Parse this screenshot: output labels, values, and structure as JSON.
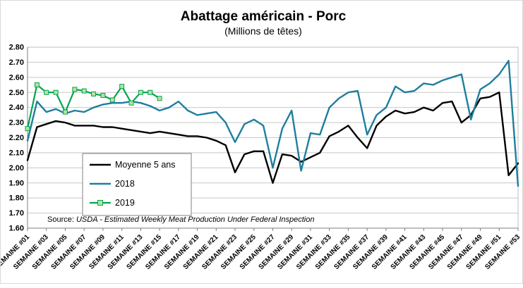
{
  "chart_data": {
    "type": "line",
    "title": "Abattage américain - Porc",
    "subtitle": "(Millions de têtes)",
    "source_prefix": "Source:",
    "source_text": "USDA - Estimated Weekly Meat Production Under Federal Inspection",
    "ylim": [
      1.6,
      2.8
    ],
    "ytick_step": 0.1,
    "grid": true,
    "legend_position": "inside-left",
    "n_points": 53,
    "tick_every": 2,
    "x_tick_labels": [
      "SEMAINE #01",
      "SEMAINE #03",
      "SEMAINE #05",
      "SEMAINE #07",
      "SEMAINE #09",
      "SEMAINE #11",
      "SEMAINE #13",
      "SEMAINE #15",
      "SEMAINE #17",
      "SEMAINE #19",
      "SEMAINE #21",
      "SEMAINE #23",
      "SEMAINE #25",
      "SEMAINE #27",
      "SEMAINE #29",
      "SEMAINE #31",
      "SEMAINE #33",
      "SEMAINE #35",
      "SEMAINE #37",
      "SEMAINE #39",
      "SEMAINE #41",
      "SEMAINE #43",
      "SEMAINE #45",
      "SEMAINE #47",
      "SEMAINE #49",
      "SEMAINE #51",
      "SEMAINE #53"
    ],
    "series": [
      {
        "name": "Moyenne 5 ans",
        "color": "#000000",
        "width": 2.4,
        "marker": false,
        "values": [
          2.05,
          2.27,
          2.29,
          2.31,
          2.3,
          2.28,
          2.28,
          2.28,
          2.27,
          2.27,
          2.26,
          2.25,
          2.24,
          2.23,
          2.24,
          2.23,
          2.22,
          2.21,
          2.21,
          2.2,
          2.18,
          2.15,
          1.97,
          2.09,
          2.11,
          2.11,
          1.9,
          2.09,
          2.08,
          2.04,
          2.07,
          2.1,
          2.21,
          2.24,
          2.28,
          2.2,
          2.13,
          2.28,
          2.34,
          2.38,
          2.36,
          2.37,
          2.4,
          2.38,
          2.43,
          2.44,
          2.3,
          2.35,
          2.46,
          2.47,
          2.5,
          1.95,
          2.03
        ]
      },
      {
        "name": "2018",
        "color": "#1F7E9E",
        "width": 2.4,
        "marker": false,
        "values": [
          2.18,
          2.44,
          2.37,
          2.39,
          2.36,
          2.38,
          2.37,
          2.4,
          2.42,
          2.43,
          2.43,
          2.44,
          2.43,
          2.41,
          2.38,
          2.4,
          2.44,
          2.38,
          2.35,
          2.36,
          2.37,
          2.3,
          2.17,
          2.29,
          2.32,
          2.28,
          2.0,
          2.26,
          2.38,
          1.98,
          2.23,
          2.22,
          2.4,
          2.46,
          2.5,
          2.51,
          2.22,
          2.35,
          2.4,
          2.54,
          2.5,
          2.51,
          2.56,
          2.55,
          2.58,
          2.6,
          2.62,
          2.32,
          2.52,
          2.56,
          2.62,
          2.71,
          1.88
        ]
      },
      {
        "name": "2019",
        "color": "#00A550",
        "width": 2.2,
        "marker": "square",
        "marker_fill": "#B7E1A1",
        "values": [
          2.26,
          2.55,
          2.5,
          2.5,
          2.37,
          2.52,
          2.51,
          2.49,
          2.48,
          2.45,
          2.54,
          2.43,
          2.5,
          2.5,
          2.46,
          null,
          null,
          null,
          null,
          null,
          null,
          null,
          null,
          null,
          null,
          null,
          null,
          null,
          null,
          null,
          null,
          null,
          null,
          null,
          null,
          null,
          null,
          null,
          null,
          null,
          null,
          null,
          null,
          null,
          null,
          null,
          null,
          null,
          null,
          null,
          null,
          null,
          null
        ]
      }
    ]
  }
}
